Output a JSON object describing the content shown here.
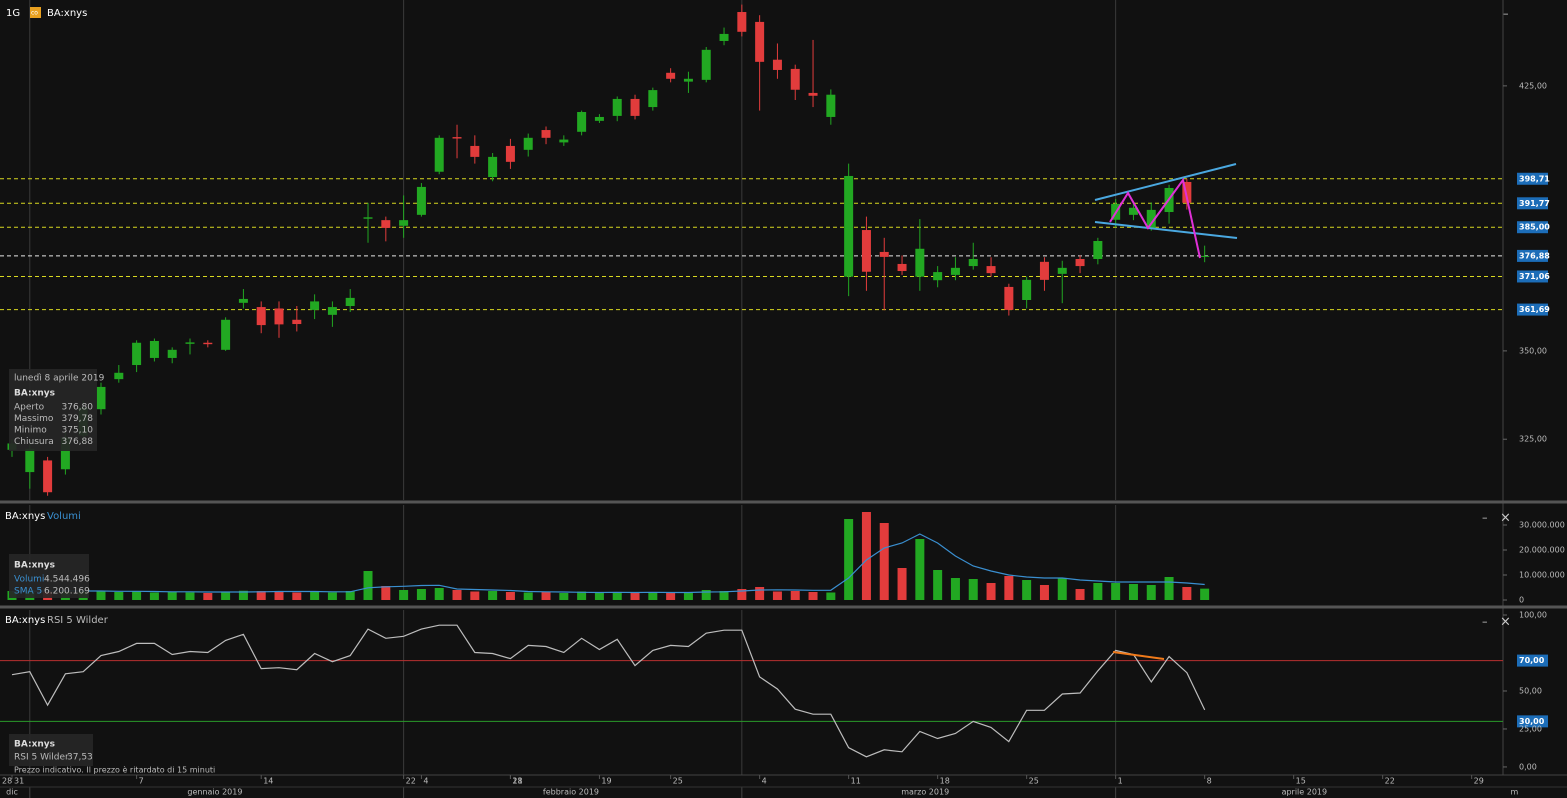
{
  "header": {
    "interval": "1G",
    "icon": "co"
  },
  "controls": {
    "minimize": "–",
    "close": "×"
  },
  "chart_data": [
    {
      "type": "candlestick",
      "name": "BA:xnys",
      "up_color": "#22a822",
      "down_color": "#e23c3c",
      "open": [
        322.0,
        315.7,
        319.0,
        316.5,
        326.0,
        333.5,
        342.0,
        346.0,
        348.0,
        348.0,
        352.0,
        352.3,
        350.3,
        363.6,
        362.4,
        362.0,
        358.8,
        361.6,
        360.2,
        362.7,
        387.4,
        387.0,
        385.4,
        388.5,
        400.7,
        410.5,
        408.0,
        399.2,
        408.0,
        406.9,
        412.5,
        409.0,
        412.0,
        415.1,
        416.5,
        421.3,
        419.0,
        428.7,
        426.2,
        426.7,
        437.7,
        445.9,
        443.1,
        432.4,
        429.8,
        423.0,
        416.2,
        371.0,
        384.2,
        378.0,
        374.6,
        371.0,
        370.0,
        371.5,
        374.0,
        374.0,
        368.1,
        364.4,
        375.2,
        371.8,
        376.0,
        376.0,
        387.1,
        388.5,
        384.8,
        389.3,
        397.8,
        376.8
      ],
      "high": [
        325.0,
        323.5,
        320.0,
        327.0,
        336.0,
        341.0,
        346.0,
        353.0,
        353.5,
        351.0,
        353.5,
        353.0,
        359.5,
        367.5,
        364.0,
        364.0,
        362.7,
        366.0,
        364.0,
        367.5,
        391.9,
        388.0,
        394.0,
        397.5,
        411.0,
        414.0,
        411.0,
        406.0,
        410.0,
        411.5,
        413.5,
        411.0,
        418.0,
        417.0,
        422.0,
        422.5,
        424.5,
        430.0,
        429.0,
        436.0,
        441.5,
        448.0,
        445.0,
        437.0,
        431.0,
        438.0,
        424.0,
        403.0,
        388.0,
        382.0,
        377.0,
        387.3,
        374.0,
        376.5,
        380.6,
        376.5,
        369.0,
        371.0,
        376.5,
        375.5,
        377.0,
        382.0,
        393.0,
        392.0,
        392.0,
        397.0,
        398.7,
        379.78
      ],
      "low": [
        320.0,
        311.0,
        309.0,
        315.0,
        324.0,
        332.0,
        341.0,
        344.0,
        347.0,
        346.5,
        349.0,
        351.0,
        350.0,
        362.0,
        355.0,
        353.7,
        355.5,
        359.0,
        356.8,
        361.0,
        380.6,
        381.0,
        382.0,
        388.0,
        400.0,
        404.5,
        403.0,
        398.0,
        401.5,
        405.0,
        408.5,
        408.0,
        411.0,
        414.5,
        415.0,
        415.5,
        418.0,
        426.0,
        423.0,
        426.0,
        436.5,
        439.0,
        418.0,
        427.0,
        421.0,
        419.0,
        414.0,
        365.5,
        367.0,
        361.5,
        371.5,
        367.0,
        368.0,
        370.0,
        373.0,
        371.0,
        360.0,
        362.0,
        367.0,
        363.5,
        372.0,
        374.5,
        385.0,
        387.0,
        384.0,
        386.0,
        390.0,
        375.1
      ],
      "close": [
        323.8,
        322.3,
        310.0,
        325.5,
        334.0,
        339.8,
        343.8,
        352.3,
        352.8,
        350.3,
        352.4,
        351.9,
        358.8,
        364.7,
        357.3,
        357.5,
        357.6,
        364.0,
        362.4,
        365.0,
        387.8,
        384.8,
        387.0,
        396.4,
        410.3,
        410.1,
        404.9,
        404.9,
        403.5,
        410.3,
        410.3,
        409.8,
        417.6,
        416.2,
        421.3,
        416.5,
        423.8,
        427.0,
        427.0,
        435.2,
        439.7,
        440.3,
        431.8,
        429.5,
        423.9,
        422.2,
        422.5,
        399.5,
        372.4,
        376.6,
        372.6,
        378.9,
        372.3,
        373.5,
        376.0,
        372.0,
        361.6,
        370.1,
        370.1,
        373.5,
        374.0,
        381.1,
        391.6,
        390.5,
        389.9,
        396.1,
        391.9,
        376.88
      ],
      "xlim": [
        -0.674,
        83.76
      ],
      "ylim": [
        307.8,
        449.3
      ],
      "yticks": [
        {
          "value": 325,
          "label": "325,00"
        },
        {
          "value": 350,
          "label": "350,00"
        },
        {
          "value": 425,
          "label": "425,00"
        }
      ],
      "levels": [
        {
          "value": 398.71,
          "label": "398,71",
          "color": "#d8d820"
        },
        {
          "value": 391.77,
          "label": "391,77",
          "color": "#d8d820"
        },
        {
          "value": 385.0,
          "label": "385,00",
          "color": "#d8d820"
        },
        {
          "value": 376.88,
          "label": "376,88",
          "color": "#e8e8e8"
        },
        {
          "value": 371.06,
          "label": "371,06",
          "color": "#d8d820"
        },
        {
          "value": 361.69,
          "label": "361,69",
          "color": "#d8d820"
        }
      ],
      "xticks": [
        {
          "value": -1,
          "label": "28"
        },
        {
          "value": 0,
          "label": "31"
        },
        7,
        14,
        22,
        28,
        {
          "value": 23,
          "label": "4"
        },
        {
          "value": 28,
          "label": "11"
        },
        {
          "value": 33,
          "label": "19"
        },
        {
          "value": 37,
          "label": "25"
        },
        {
          "value": 42,
          "label": "4"
        },
        {
          "value": 47,
          "label": "11"
        },
        {
          "value": 52,
          "label": "18"
        },
        {
          "value": 57,
          "label": "25"
        },
        {
          "value": 62,
          "label": "1"
        },
        {
          "value": 67,
          "label": "8"
        },
        {
          "value": 72,
          "label": "15"
        },
        {
          "value": 77,
          "label": "22"
        },
        {
          "value": 82,
          "label": "29"
        }
      ],
      "month_ticks": [
        {
          "value": 0,
          "label": "dic"
        },
        {
          "value": 11.4,
          "label": "gennaio 2019"
        },
        {
          "value": 31.4,
          "label": "febbraio 2019"
        },
        {
          "value": 51.3,
          "label": "marzo 2019"
        },
        {
          "value": 72.6,
          "label": "aprile 2019"
        },
        {
          "value": 84.4,
          "label": "m"
        }
      ],
      "xgrid": [
        1,
        22,
        41,
        62
      ],
      "tooltip": {
        "date": "lunedì 8 aprile 2019",
        "name": "BA:xnys",
        "rows": [
          {
            "label": "Aperto",
            "text": "376,80"
          },
          {
            "label": "Massimo",
            "text": "379,78"
          },
          {
            "label": "Minimo",
            "text": "375,10"
          },
          {
            "label": "Chiusura",
            "text": "376,88"
          }
        ]
      }
    },
    {
      "type": "bar",
      "title": "BA:xnys",
      "series": [
        {
          "name": "Volumi",
          "type": "bar",
          "values": [
            3600000,
            4000000,
            3400000,
            3800000,
            3600000,
            3500000,
            3200000,
            3600000,
            3000000,
            3300000,
            3000000,
            2800000,
            3400000,
            3700000,
            3600000,
            3200000,
            3000000,
            3400000,
            3000000,
            3600000,
            11600000,
            5600000,
            4000000,
            4400000,
            4800000,
            4000000,
            3400000,
            3600000,
            3200000,
            3000000,
            3200000,
            2800000,
            3400000,
            2800000,
            3200000,
            3000000,
            3200000,
            3000000,
            2800000,
            4000000,
            3600000,
            4400000,
            5200000,
            3400000,
            3600000,
            3200000,
            3000000,
            32400000,
            35200000,
            30800000,
            12800000,
            24400000,
            12000000,
            8800000,
            8400000,
            6800000,
            9600000,
            8000000,
            6000000,
            8800000,
            4400000,
            6800000,
            6800000,
            6400000,
            6000000,
            9200000,
            5200000,
            4544496
          ]
        },
        {
          "name": "SMA 5",
          "type": "line",
          "color": "#3a8fd0",
          "values": [
            3400000,
            3500000,
            3600000,
            3700000,
            3600000,
            3600000,
            3500000,
            3500000,
            3400000,
            3300000,
            3300000,
            3200000,
            3200000,
            3200000,
            3300000,
            3400000,
            3400000,
            3400000,
            3300000,
            3300000,
            4900000,
            5300000,
            5500000,
            5800000,
            5900000,
            4400000,
            4200000,
            4000000,
            3800000,
            3400000,
            3300000,
            3200000,
            3100000,
            3000000,
            3100000,
            3000000,
            3100000,
            3000000,
            3000000,
            3200000,
            3300000,
            3600000,
            4000000,
            4100000,
            4000000,
            3900000,
            3900000,
            8800000,
            16000000,
            20800000,
            22800000,
            26400000,
            22800000,
            17600000,
            13600000,
            11600000,
            10000000,
            9200000,
            8800000,
            8800000,
            8000000,
            7600000,
            7200000,
            7200000,
            7200000,
            7200000,
            6800000,
            6200169
          ]
        }
      ],
      "ylim": [
        0,
        38000000
      ],
      "yticks": [
        0,
        {
          "value": 10000000,
          "label": "10.000.000"
        },
        {
          "value": 20000000,
          "label": "20.000.000"
        },
        {
          "value": 30000000,
          "label": "30.000.000"
        }
      ],
      "tooltip": {
        "name": "BA:xnys",
        "rows": [
          "4.544.496",
          "6.200.169"
        ]
      }
    },
    {
      "type": "line",
      "title": "BA:xnys",
      "series": [
        {
          "name": "RSI 5 Wilder",
          "color": "#bdbdbd",
          "values": [
            60.7,
            62.7,
            40.7,
            61.3,
            62.7,
            73.3,
            76,
            81.3,
            81.3,
            74,
            76,
            75.3,
            83.3,
            87.3,
            64.7,
            65.3,
            64,
            74.7,
            69.3,
            73.3,
            90.7,
            84.7,
            86,
            90.7,
            93.3,
            93.3,
            75.3,
            74.7,
            71.3,
            80,
            79.3,
            75.3,
            84.7,
            77.3,
            84,
            66.7,
            76.7,
            80,
            79.3,
            88,
            90,
            90,
            59.3,
            51.3,
            38,
            34.7,
            34.7,
            12.7,
            6.7,
            11.3,
            10,
            23.3,
            18.7,
            22,
            30,
            26,
            16.7,
            37.3,
            37.3,
            48,
            48.7,
            63.3,
            76.7,
            74,
            56,
            72.7,
            62,
            37.53
          ]
        }
      ],
      "ylim": [
        -5.3,
        103.3
      ],
      "yticks": [
        {
          "value": 0,
          "label": "0,00"
        },
        {
          "value": 25,
          "label": "25,00"
        },
        {
          "value": 50,
          "label": "50,00"
        },
        {
          "value": 100,
          "label": "100,00"
        }
      ],
      "levels": [
        {
          "value": 70,
          "label": "70,00",
          "color": "#b83030"
        },
        {
          "value": 30,
          "label": "30,00",
          "color": "#2a9a2a"
        }
      ],
      "tooltip": {
        "name": "BA:xnys",
        "text": "37,53",
        "note": "Prezzo indicativo. Il prezzo è ritardato di 15 minuti"
      }
    }
  ]
}
